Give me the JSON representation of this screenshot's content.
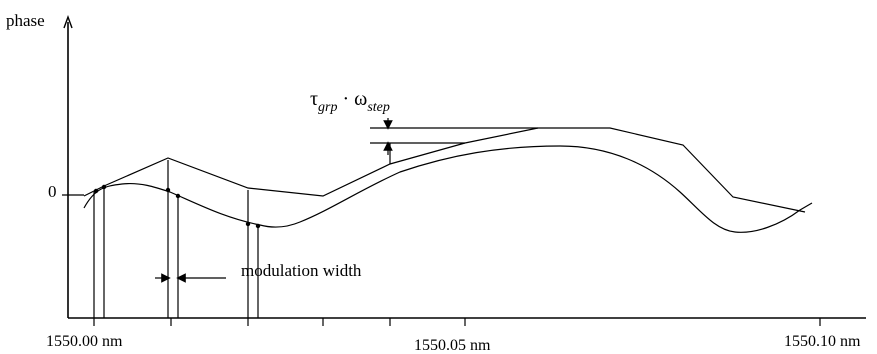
{
  "axes": {
    "y_label": "phase",
    "zero_label": "0",
    "x_ticks": [
      "1550.00 nm",
      "1550.05 nm",
      "1550.10 nm"
    ]
  },
  "annotations": {
    "step_symbol": "τ",
    "step_sub1": "grp",
    "step_dot": " · ω",
    "step_sub2": "step",
    "modulation_width": "modulation width"
  }
}
